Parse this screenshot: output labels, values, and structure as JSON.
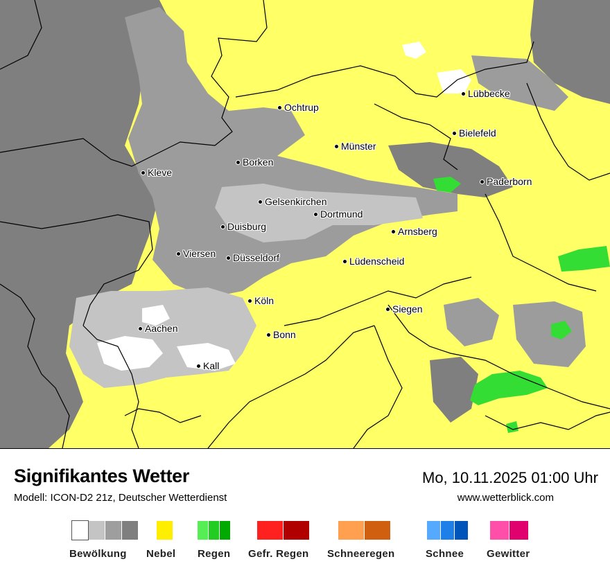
{
  "header": {
    "title": "Signifikantes Wetter",
    "model": "Modell: ICON-D2 21z, Deutscher Wetterdienst",
    "datetime": "Mo, 10.11.2025 01:00 Uhr",
    "website": "www.wetterblick.com"
  },
  "map": {
    "cities": [
      {
        "name": "Ochtrup"
      },
      {
        "name": "Lübbecke"
      },
      {
        "name": "Bielefeld"
      },
      {
        "name": "Münster"
      },
      {
        "name": "Borken"
      },
      {
        "name": "Kleve"
      },
      {
        "name": "Paderborn"
      },
      {
        "name": "Gelsenkirchen"
      },
      {
        "name": "Dortmund"
      },
      {
        "name": "Duisburg"
      },
      {
        "name": "Arnsberg"
      },
      {
        "name": "Viersen"
      },
      {
        "name": "Düsseldorf"
      },
      {
        "name": "Lüdenscheid"
      },
      {
        "name": "Köln"
      },
      {
        "name": "Siegen"
      },
      {
        "name": "Aachen"
      },
      {
        "name": "Bonn"
      },
      {
        "name": "Kall"
      }
    ],
    "colors": {
      "fog": "#ffff66",
      "cloud_dark": "#7f7f7f",
      "cloud_medium": "#9c9c9c",
      "cloud_light": "#c4c4c4",
      "clear": "#ffffff",
      "rain": "#33dd33",
      "border": "#000000"
    }
  },
  "legend": {
    "groups": [
      {
        "label": "Bewölkung",
        "colors": [
          "#ffffff",
          "#c4c4c4",
          "#9e9e9e",
          "#7f7f7f"
        ]
      },
      {
        "label": "Nebel",
        "colors": [
          "#ffee00"
        ]
      },
      {
        "label": "Regen",
        "colors": [
          "#55ee55",
          "#22cc22",
          "#00aa00"
        ]
      },
      {
        "label": "Gefr. Regen",
        "colors": [
          "#ff2020",
          "#b00000"
        ]
      },
      {
        "label": "Schneeregen",
        "colors": [
          "#ffa050",
          "#d06010"
        ]
      },
      {
        "label": "Schnee",
        "colors": [
          "#55aaff",
          "#1f7fe8",
          "#0055bb"
        ]
      },
      {
        "label": "Gewitter",
        "colors": [
          "#ff4fa8",
          "#e0006e"
        ]
      }
    ]
  }
}
